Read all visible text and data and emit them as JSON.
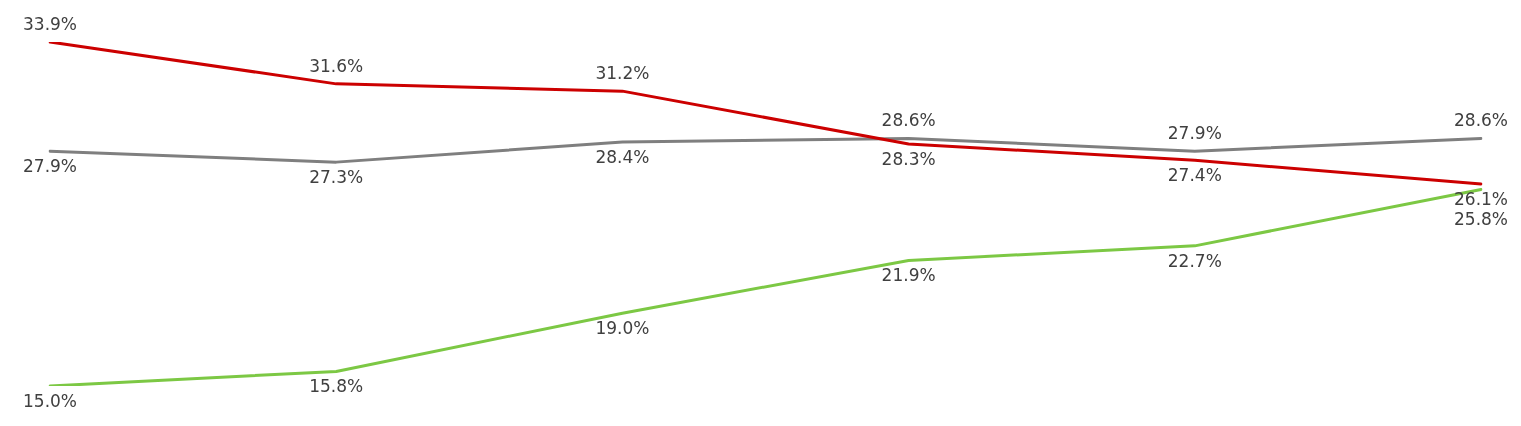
{
  "chart_data": {
    "type": "line",
    "categories": [
      null,
      null,
      null,
      null,
      null,
      null
    ],
    "legend": false,
    "grid": false,
    "marker": "none",
    "tick_labels": false,
    "series": [
      {
        "color": "#cc0000",
        "values": [
          33.9,
          31.6,
          31.2,
          28.3,
          27.4,
          26.1
        ],
        "value_labels": [
          "33.9%",
          "31.6%",
          "31.2%",
          "28.3%",
          "27.4%",
          "26.1%"
        ]
      },
      {
        "color": "#7f7f7f",
        "values": [
          27.9,
          27.3,
          28.4,
          28.6,
          27.9,
          28.6
        ],
        "value_labels": [
          "27.9%",
          "27.3%",
          "28.4%",
          "28.6%",
          "27.9%",
          "28.6%"
        ]
      },
      {
        "color": "#7cc844",
        "values": [
          15.0,
          15.8,
          19.0,
          21.9,
          22.7,
          25.8
        ],
        "value_labels": [
          "15.0%",
          "15.8%",
          "19.0%",
          "21.9%",
          "22.7%",
          "25.8%"
        ]
      }
    ]
  }
}
